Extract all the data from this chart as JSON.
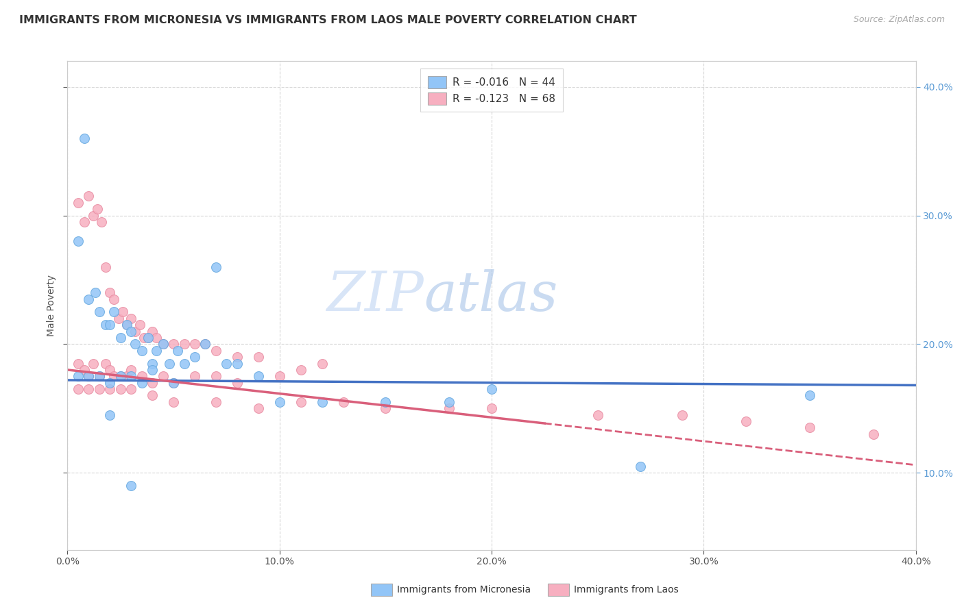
{
  "title": "IMMIGRANTS FROM MICRONESIA VS IMMIGRANTS FROM LAOS MALE POVERTY CORRELATION CHART",
  "source_text": "Source: ZipAtlas.com",
  "ylabel": "Male Poverty",
  "xlim": [
    0.0,
    0.4
  ],
  "ylim": [
    0.04,
    0.42
  ],
  "xticks": [
    0.0,
    0.1,
    0.2,
    0.3,
    0.4
  ],
  "xticklabels": [
    "0.0%",
    "10.0%",
    "20.0%",
    "30.0%",
    "40.0%"
  ],
  "yticks_right": [
    0.1,
    0.2,
    0.3,
    0.4
  ],
  "yticklabels_right": [
    "10.0%",
    "20.0%",
    "30.0%",
    "40.0%"
  ],
  "series1_name": "Immigrants from Micronesia",
  "series2_name": "Immigrants from Laos",
  "series1_color": "#92c5f7",
  "series2_color": "#f7afc0",
  "series1_edge_color": "#6aaae0",
  "series2_edge_color": "#e88fa4",
  "series1_R": "-0.016",
  "series1_N": "44",
  "series2_R": "-0.123",
  "series2_N": "68",
  "series1_line_color": "#4472c4",
  "series2_line_color": "#d95f7b",
  "series1_line_y0": 0.172,
  "series1_line_y1": 0.168,
  "series2_line_y0": 0.18,
  "series2_line_solid_end_x": 0.225,
  "series2_line_slope": -0.185,
  "grid_color": "#cccccc",
  "background_color": "#ffffff",
  "title_fontsize": 11.5,
  "axis_label_fontsize": 10,
  "tick_fontsize": 10,
  "legend_fontsize": 11,
  "marker_size": 100,
  "series1_x": [
    0.008,
    0.005,
    0.01,
    0.013,
    0.015,
    0.018,
    0.02,
    0.022,
    0.025,
    0.028,
    0.03,
    0.032,
    0.035,
    0.038,
    0.04,
    0.042,
    0.045,
    0.048,
    0.052,
    0.055,
    0.06,
    0.065,
    0.07,
    0.075,
    0.08,
    0.09,
    0.01,
    0.015,
    0.02,
    0.025,
    0.03,
    0.035,
    0.04,
    0.05,
    0.1,
    0.12,
    0.15,
    0.18,
    0.2,
    0.27,
    0.35,
    0.02,
    0.03,
    0.005
  ],
  "series1_y": [
    0.36,
    0.28,
    0.235,
    0.24,
    0.225,
    0.215,
    0.215,
    0.225,
    0.205,
    0.215,
    0.21,
    0.2,
    0.195,
    0.205,
    0.185,
    0.195,
    0.2,
    0.185,
    0.195,
    0.185,
    0.19,
    0.2,
    0.26,
    0.185,
    0.185,
    0.175,
    0.175,
    0.175,
    0.17,
    0.175,
    0.175,
    0.17,
    0.18,
    0.17,
    0.155,
    0.155,
    0.155,
    0.155,
    0.165,
    0.105,
    0.16,
    0.145,
    0.09,
    0.175
  ],
  "series2_x": [
    0.005,
    0.008,
    0.01,
    0.012,
    0.014,
    0.016,
    0.018,
    0.02,
    0.022,
    0.024,
    0.026,
    0.028,
    0.03,
    0.032,
    0.034,
    0.036,
    0.038,
    0.04,
    0.042,
    0.045,
    0.05,
    0.055,
    0.06,
    0.065,
    0.07,
    0.08,
    0.09,
    0.1,
    0.11,
    0.12,
    0.005,
    0.008,
    0.01,
    0.012,
    0.015,
    0.018,
    0.02,
    0.022,
    0.025,
    0.028,
    0.03,
    0.035,
    0.04,
    0.045,
    0.05,
    0.06,
    0.07,
    0.08,
    0.005,
    0.01,
    0.015,
    0.02,
    0.025,
    0.03,
    0.04,
    0.05,
    0.07,
    0.09,
    0.11,
    0.13,
    0.15,
    0.18,
    0.2,
    0.25,
    0.29,
    0.32,
    0.35,
    0.38
  ],
  "series2_y": [
    0.31,
    0.295,
    0.315,
    0.3,
    0.305,
    0.295,
    0.26,
    0.24,
    0.235,
    0.22,
    0.225,
    0.215,
    0.22,
    0.21,
    0.215,
    0.205,
    0.205,
    0.21,
    0.205,
    0.2,
    0.2,
    0.2,
    0.2,
    0.2,
    0.195,
    0.19,
    0.19,
    0.175,
    0.18,
    0.185,
    0.185,
    0.18,
    0.175,
    0.185,
    0.175,
    0.185,
    0.18,
    0.175,
    0.175,
    0.175,
    0.18,
    0.175,
    0.17,
    0.175,
    0.17,
    0.175,
    0.175,
    0.17,
    0.165,
    0.165,
    0.165,
    0.165,
    0.165,
    0.165,
    0.16,
    0.155,
    0.155,
    0.15,
    0.155,
    0.155,
    0.15,
    0.15,
    0.15,
    0.145,
    0.145,
    0.14,
    0.135,
    0.13
  ]
}
